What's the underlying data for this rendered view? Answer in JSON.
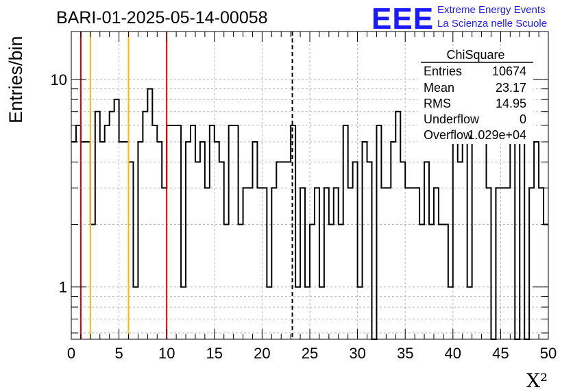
{
  "chart_data": {
    "type": "histogram",
    "title": "BARI-01-2025-05-14-00058",
    "xlabel": "X²",
    "ylabel": "Entries/bin",
    "xlim": [
      0,
      50
    ],
    "ylim": [
      0.56,
      17
    ],
    "yscale": "log",
    "grid": true,
    "bin_width": 0.5,
    "x_ticks": [
      "0",
      "5",
      "10",
      "15",
      "20",
      "25",
      "30",
      "35",
      "40",
      "45",
      "50"
    ],
    "y_ticks": [
      "1",
      "10"
    ],
    "bin_counts": [
      5,
      6,
      5,
      5,
      2,
      7,
      5,
      6,
      7,
      8,
      5,
      5,
      4,
      1,
      5,
      7,
      9,
      6,
      5,
      3,
      6,
      6,
      6,
      1,
      5,
      6,
      4,
      5,
      3,
      6,
      5,
      4,
      2,
      6,
      6,
      2,
      3,
      3,
      5,
      3,
      3,
      1,
      3,
      4,
      4,
      4,
      6,
      1,
      3,
      1,
      2,
      3,
      1,
      3,
      2,
      3,
      2,
      6,
      3,
      4,
      1,
      5,
      4,
      0,
      6,
      3,
      3,
      5,
      7,
      4,
      3,
      3,
      3,
      2,
      4,
      2,
      3,
      2,
      2,
      1,
      5,
      4,
      5,
      1,
      8,
      5,
      8,
      3,
      0,
      3,
      3,
      3,
      9,
      0,
      5,
      0,
      3,
      5,
      3,
      2
    ],
    "vertical_lines": [
      {
        "x": 1,
        "color": "#dd0000"
      },
      {
        "x": 2,
        "color": "#f0c000"
      },
      {
        "x": 6,
        "color": "#f0c000"
      },
      {
        "x": 10,
        "color": "#dd0000"
      },
      {
        "x": 23.17,
        "color": "#000000",
        "dashed": true
      }
    ],
    "stats": {
      "title": "ChiSquare",
      "rows": [
        {
          "label": "Entries",
          "value": "10674"
        },
        {
          "label": "Mean",
          "value": "23.17"
        },
        {
          "label": "RMS",
          "value": "14.95"
        },
        {
          "label": "Underflow",
          "value": "0"
        },
        {
          "label": "Overflow",
          "value": "1.029e+04"
        }
      ]
    }
  },
  "logo": {
    "mark": "EEE",
    "line1": "Extreme Energy Events",
    "line2": "La Scienza nelle Scuole",
    "color": "#1a1aff"
  }
}
